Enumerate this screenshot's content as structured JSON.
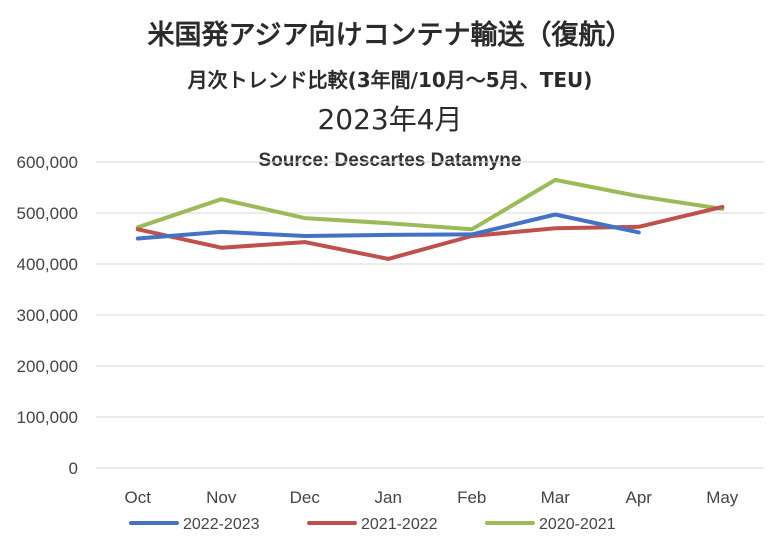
{
  "chart_data": {
    "type": "line",
    "title": "米国発アジア向けコンテナ輸送（復航）",
    "subtitle": "月次トレンド比較(3年間/10月～5月、TEU)",
    "date_label": "2023年4月",
    "source": "Source: Descartes Datamyne",
    "categories": [
      "Oct",
      "Nov",
      "Dec",
      "Jan",
      "Feb",
      "Mar",
      "Apr",
      "May"
    ],
    "ylim": [
      0,
      600000
    ],
    "yticks": [
      {
        "value": 0,
        "label": "0"
      },
      {
        "value": 100000,
        "label": "100,000"
      },
      {
        "value": 200000,
        "label": "200,000"
      },
      {
        "value": 300000,
        "label": "300,000"
      },
      {
        "value": 400000,
        "label": "400,000"
      },
      {
        "value": 500000,
        "label": "500,000"
      },
      {
        "value": 600000,
        "label": "600,000"
      }
    ],
    "grid": true,
    "legend_position": "bottom",
    "series": [
      {
        "name": "2022-2023",
        "color": "#4472c4",
        "values": [
          450000,
          463000,
          455000,
          457000,
          458000,
          497000,
          462000,
          null
        ]
      },
      {
        "name": "2021-2022",
        "color": "#c0504d",
        "values": [
          468000,
          432000,
          443000,
          410000,
          455000,
          470000,
          473000,
          512000
        ]
      },
      {
        "name": "2020-2021",
        "color": "#9bbb59",
        "values": [
          472000,
          527000,
          490000,
          480000,
          468000,
          565000,
          533000,
          508000
        ]
      }
    ]
  }
}
